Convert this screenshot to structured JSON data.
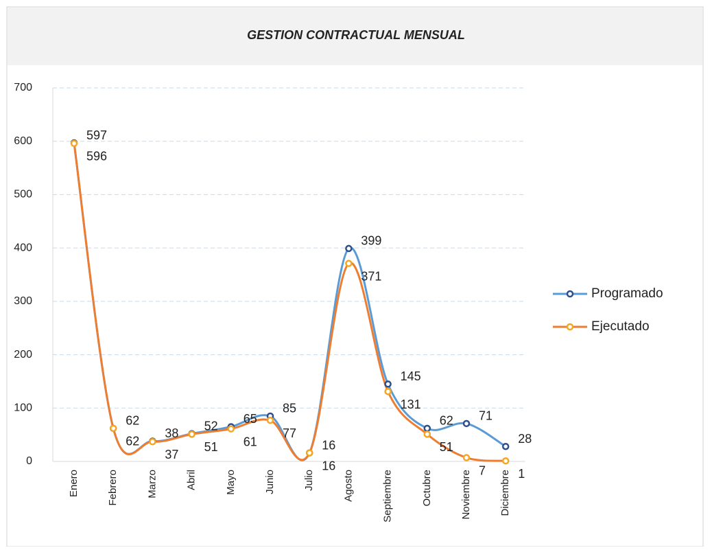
{
  "chart_data": {
    "type": "line",
    "title": "GESTION CONTRACTUAL MENSUAL",
    "categories": [
      "Enero",
      "Febrero",
      "Marzo",
      "Abril",
      "Mayo",
      "Junio",
      "Julio",
      "Agosto",
      "Septiembre",
      "Octubre",
      "Noviembre",
      "Diciembre"
    ],
    "series": [
      {
        "name": "Programado",
        "color": "#5b9bd5",
        "marker_color": "#2e4f8e",
        "values": [
          597,
          62,
          38,
          52,
          65,
          85,
          16,
          399,
          145,
          62,
          71,
          28
        ]
      },
      {
        "name": "Ejecutado",
        "color": "#ed7d31",
        "marker_color": "#f5a623",
        "values": [
          596,
          62,
          37,
          51,
          61,
          77,
          16,
          371,
          131,
          51,
          7,
          1
        ]
      }
    ],
    "ylim": [
      0,
      700
    ],
    "yticks": [
      0,
      100,
      200,
      300,
      400,
      500,
      600,
      700
    ],
    "grid": true,
    "smooth": true,
    "legend": "right"
  }
}
